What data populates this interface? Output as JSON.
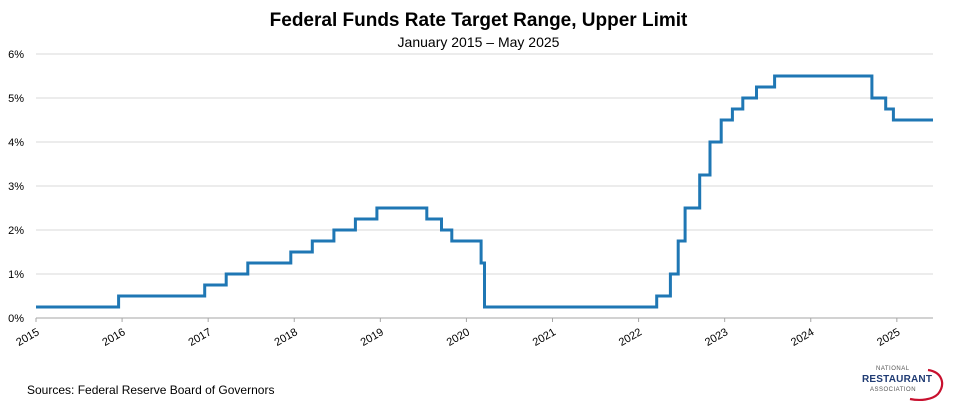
{
  "source": "Sources: Federal Reserve Board of Governors",
  "logo": {
    "line1": "NATIONAL",
    "line2": "RESTAURANT",
    "line3": "ASSOCIATION"
  },
  "colors": {
    "line": "#1f77b4",
    "grid": "#d9d9d9",
    "logo_blue": "#1f3b73",
    "logo_red": "#c8102e"
  },
  "chart_data": {
    "type": "line",
    "title": "Federal Funds Rate Target Range, Upper Limit",
    "subtitle": "January 2015 – May 2025",
    "xlabel": "",
    "ylabel": "",
    "xlim": [
      2015.0,
      2025.42
    ],
    "ylim": [
      0,
      6
    ],
    "yticks": [
      0,
      1,
      2,
      3,
      4,
      5,
      6
    ],
    "ytick_labels": [
      "0%",
      "1%",
      "2%",
      "3%",
      "4%",
      "5%",
      "6%"
    ],
    "xticks": [
      2015,
      2016,
      2017,
      2018,
      2019,
      2020,
      2021,
      2022,
      2023,
      2024,
      2025
    ],
    "xtick_labels": [
      "2015",
      "2016",
      "2017",
      "2018",
      "2019",
      "2020",
      "2021",
      "2022",
      "2023",
      "2024",
      "2025"
    ],
    "grid": true,
    "series": [
      {
        "name": "Upper Limit",
        "step": true,
        "x": [
          2015.0,
          2015.96,
          2016.96,
          2017.21,
          2017.46,
          2017.96,
          2018.21,
          2018.46,
          2018.71,
          2018.96,
          2019.54,
          2019.71,
          2019.83,
          2020.17,
          2020.21,
          2022.21,
          2022.37,
          2022.46,
          2022.54,
          2022.71,
          2022.83,
          2022.96,
          2023.09,
          2023.21,
          2023.37,
          2023.58,
          2024.71,
          2024.87,
          2024.96,
          2025.42
        ],
        "y": [
          0.25,
          0.5,
          0.75,
          1.0,
          1.25,
          1.5,
          1.75,
          2.0,
          2.25,
          2.5,
          2.25,
          2.0,
          1.75,
          1.25,
          0.25,
          0.5,
          1.0,
          1.75,
          2.5,
          3.25,
          4.0,
          4.5,
          4.75,
          5.0,
          5.25,
          5.5,
          5.0,
          4.75,
          4.5,
          4.5
        ]
      }
    ]
  }
}
